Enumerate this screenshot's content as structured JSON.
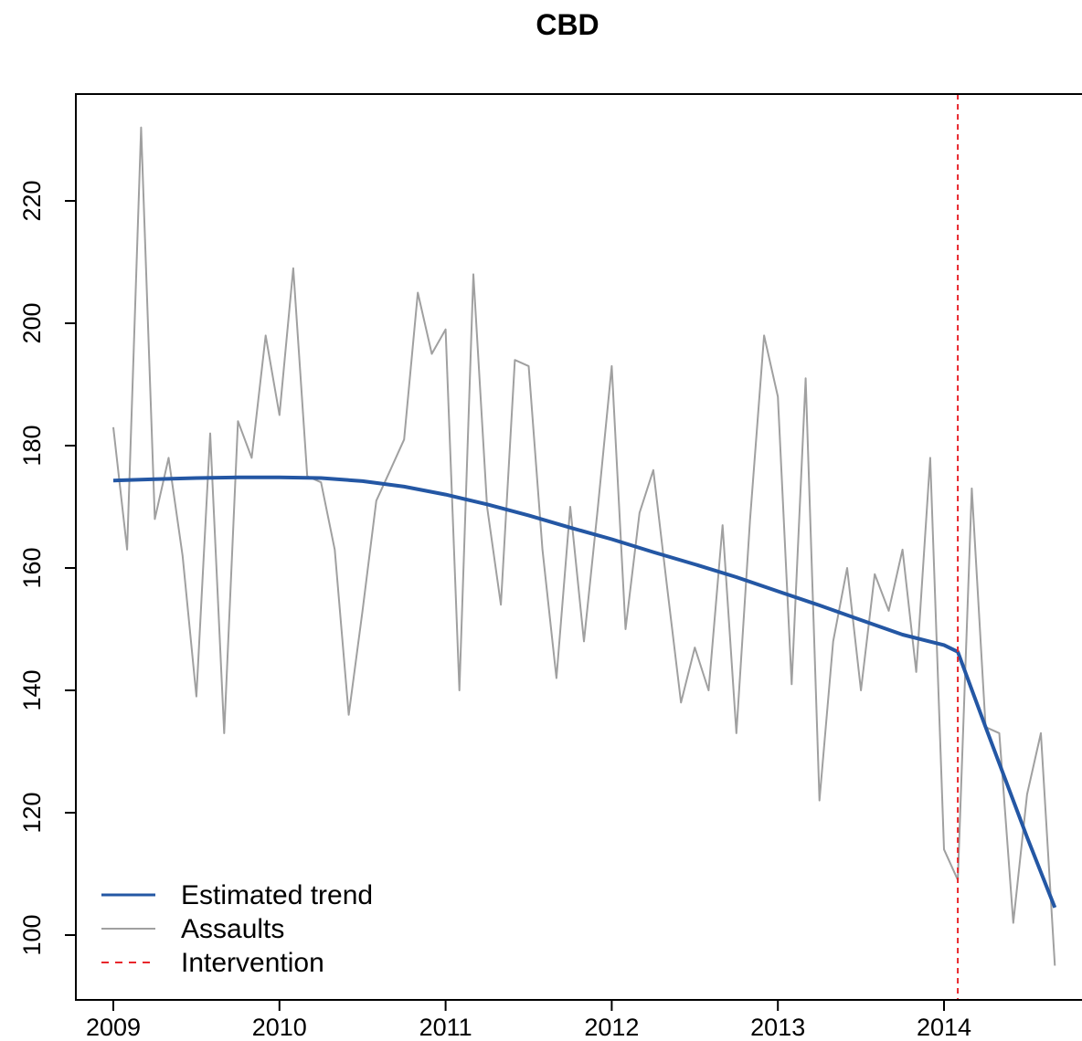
{
  "chart_data": {
    "type": "line",
    "title": "CBD",
    "xlabel": "",
    "ylabel": "",
    "x_ticks": [
      "2009",
      "2010",
      "2011",
      "2012",
      "2013",
      "2014"
    ],
    "y_ticks": [
      "100",
      "120",
      "140",
      "160",
      "180",
      "200",
      "220"
    ],
    "xlim": [
      2008.77,
      2014.87
    ],
    "ylim": [
      91,
      234
    ],
    "grid": false,
    "legend_position": "bottom-left",
    "series": [
      {
        "name": "Estimated trend",
        "color": "#2457a4",
        "x": [
          2009.0,
          2009.25,
          2009.5,
          2009.75,
          2010.0,
          2010.25,
          2010.5,
          2010.75,
          2011.0,
          2011.25,
          2011.5,
          2011.75,
          2012.0,
          2012.25,
          2012.5,
          2012.75,
          2013.0,
          2013.25,
          2013.5,
          2013.75,
          2014.0,
          2014.083,
          2014.25,
          2014.5,
          2014.667
        ],
        "values": [
          174.3,
          174.5,
          174.7,
          174.8,
          174.8,
          174.7,
          174.2,
          173.3,
          172.0,
          170.4,
          168.6,
          166.6,
          164.7,
          162.6,
          160.6,
          158.5,
          156.2,
          153.9,
          151.5,
          149.1,
          147.4,
          146.3,
          134.0,
          116.0,
          104.5
        ]
      },
      {
        "name": "Assaults",
        "color": "#a0a0a0",
        "x": [
          2009.0,
          2009.083,
          2009.167,
          2009.25,
          2009.333,
          2009.417,
          2009.5,
          2009.583,
          2009.667,
          2009.75,
          2009.833,
          2009.917,
          2010.0,
          2010.083,
          2010.167,
          2010.25,
          2010.333,
          2010.417,
          2010.5,
          2010.583,
          2010.667,
          2010.75,
          2010.833,
          2010.917,
          2011.0,
          2011.083,
          2011.167,
          2011.25,
          2011.333,
          2011.417,
          2011.5,
          2011.583,
          2011.667,
          2011.75,
          2011.833,
          2011.917,
          2012.0,
          2012.083,
          2012.167,
          2012.25,
          2012.333,
          2012.417,
          2012.5,
          2012.583,
          2012.667,
          2012.75,
          2012.833,
          2012.917,
          2013.0,
          2013.083,
          2013.167,
          2013.25,
          2013.333,
          2013.417,
          2013.5,
          2013.583,
          2013.667,
          2013.75,
          2013.833,
          2013.917,
          2014.0,
          2014.083,
          2014.167,
          2014.25,
          2014.333,
          2014.417,
          2014.5,
          2014.583,
          2014.667
        ],
        "values": [
          183,
          163,
          232,
          168,
          178,
          162,
          139,
          182,
          133,
          184,
          178,
          198,
          185,
          209,
          175,
          174,
          163,
          136,
          153,
          171,
          176,
          181,
          205,
          195,
          199,
          140,
          208,
          170,
          154,
          194,
          193,
          163,
          142,
          170,
          148,
          170,
          193,
          150,
          169,
          176,
          157,
          138,
          147,
          140,
          167,
          133,
          168,
          198,
          188,
          141,
          191,
          122,
          148,
          160,
          140,
          159,
          153,
          163,
          143,
          178,
          114,
          109,
          173,
          134,
          133,
          102,
          123,
          133,
          95
        ]
      }
    ],
    "intervention": {
      "name": "Intervention",
      "color": "#e8262b",
      "x": 2014.083
    },
    "legend": [
      "Estimated trend",
      "Assaults",
      "Intervention"
    ]
  }
}
